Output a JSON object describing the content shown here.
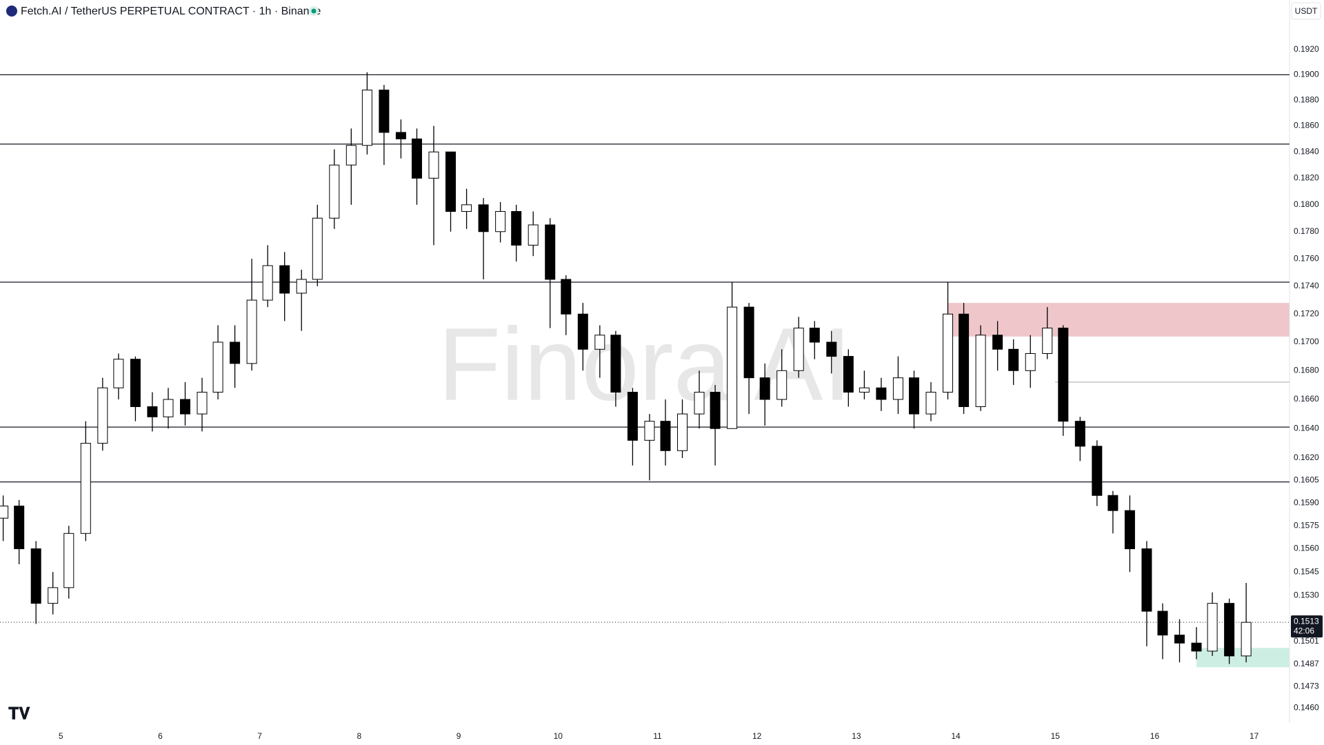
{
  "header": {
    "symbol": "Fetch.AI / TetherUS PERPETUAL CONTRACT · 1h · Binance",
    "currency": "USDT"
  },
  "chart_data": {
    "type": "candlestick",
    "watermark": "Finora AI",
    "log_scale": true,
    "up_color": "#ffffff",
    "down_color": "#000000",
    "wick_color": "#000000",
    "xlim": [
      4.388,
      17.356
    ],
    "xticks": [
      5,
      6,
      7,
      8,
      9,
      10,
      11,
      12,
      13,
      14,
      15,
      16,
      17
    ],
    "ylim": [
      0.1451,
      0.1941
    ],
    "yticks": [
      {
        "value": 0.192,
        "label": "0.1920"
      },
      {
        "value": 0.19,
        "label": "0.1900"
      },
      {
        "value": 0.188,
        "label": "0.1880"
      },
      {
        "value": 0.186,
        "label": "0.1860"
      },
      {
        "value": 0.184,
        "label": "0.1840"
      },
      {
        "value": 0.182,
        "label": "0.1820"
      },
      {
        "value": 0.18,
        "label": "0.1800"
      },
      {
        "value": 0.178,
        "label": "0.1780"
      },
      {
        "value": 0.176,
        "label": "0.1760"
      },
      {
        "value": 0.174,
        "label": "0.1740"
      },
      {
        "value": 0.172,
        "label": "0.1720"
      },
      {
        "value": 0.17,
        "label": "0.1700"
      },
      {
        "value": 0.168,
        "label": "0.1680"
      },
      {
        "value": 0.166,
        "label": "0.1660"
      },
      {
        "value": 0.164,
        "label": "0.1640"
      },
      {
        "value": 0.162,
        "label": "0.1620"
      },
      0.1605,
      {
        "value": 0.159,
        "label": "0.1590"
      },
      0.1575,
      {
        "value": 0.156,
        "label": "0.1560"
      },
      0.1545,
      {
        "value": 0.153,
        "label": "0.1530"
      },
      0.1501,
      0.1487,
      0.1473,
      {
        "value": 0.146,
        "label": "0.1460"
      }
    ],
    "x": [
      4.42,
      4.58,
      4.75,
      4.92,
      5.08,
      5.25,
      5.42,
      5.58,
      5.75,
      5.92,
      6.08,
      6.25,
      6.42,
      6.58,
      6.75,
      6.92,
      7.08,
      7.25,
      7.42,
      7.58,
      7.75,
      7.92,
      8.08,
      8.25,
      8.42,
      8.58,
      8.75,
      8.92,
      9.08,
      9.25,
      9.42,
      9.58,
      9.75,
      9.92,
      10.08,
      10.25,
      10.42,
      10.58,
      10.75,
      10.92,
      11.08,
      11.25,
      11.42,
      11.58,
      11.75,
      11.92,
      12.08,
      12.25,
      12.42,
      12.58,
      12.75,
      12.92,
      13.08,
      13.25,
      13.42,
      13.58,
      13.75,
      13.92,
      14.08,
      14.25,
      14.42,
      14.58,
      14.75,
      14.92,
      15.08,
      15.25,
      15.42,
      15.58,
      15.75,
      15.92,
      16.08,
      16.25,
      16.42,
      16.58,
      16.75,
      16.92
    ],
    "open": [
      0.158,
      0.1588,
      0.156,
      0.1525,
      0.1535,
      0.157,
      0.163,
      0.1668,
      0.1688,
      0.1655,
      0.1648,
      0.166,
      0.165,
      0.1665,
      0.17,
      0.1685,
      0.173,
      0.1755,
      0.1735,
      0.1745,
      0.179,
      0.183,
      0.1845,
      0.1888,
      0.1855,
      0.185,
      0.182,
      0.184,
      0.1795,
      0.18,
      0.178,
      0.1795,
      0.177,
      0.1785,
      0.1745,
      0.172,
      0.1695,
      0.1705,
      0.1665,
      0.1632,
      0.1645,
      0.1625,
      0.165,
      0.1665,
      0.164,
      0.1725,
      0.1675,
      0.166,
      0.168,
      0.171,
      0.17,
      0.169,
      0.1665,
      0.1668,
      0.166,
      0.1675,
      0.165,
      0.1665,
      0.172,
      0.1655,
      0.1705,
      0.1695,
      0.168,
      0.1692,
      0.171,
      0.1645,
      0.1628,
      0.1595,
      0.1585,
      0.156,
      0.152,
      0.1505,
      0.15,
      0.1495,
      0.1525,
      0.1492
    ],
    "high": [
      0.1595,
      0.1592,
      0.1565,
      0.1545,
      0.1575,
      0.1645,
      0.1675,
      0.1692,
      0.169,
      0.1665,
      0.1668,
      0.1672,
      0.1675,
      0.1712,
      0.1712,
      0.176,
      0.177,
      0.1765,
      0.1752,
      0.18,
      0.1842,
      0.1858,
      0.1902,
      0.1892,
      0.1865,
      0.1858,
      0.186,
      0.184,
      0.1812,
      0.1805,
      0.1802,
      0.18,
      0.1795,
      0.179,
      0.1748,
      0.1728,
      0.1712,
      0.1708,
      0.1668,
      0.165,
      0.166,
      0.166,
      0.168,
      0.167,
      0.1743,
      0.1728,
      0.1685,
      0.1695,
      0.1718,
      0.1715,
      0.1708,
      0.1695,
      0.168,
      0.1675,
      0.169,
      0.168,
      0.1672,
      0.1743,
      0.1728,
      0.1712,
      0.1715,
      0.1702,
      0.1705,
      0.1725,
      0.1712,
      0.1648,
      0.1632,
      0.1598,
      0.1595,
      0.1565,
      0.1525,
      0.1515,
      0.151,
      0.1532,
      0.1528,
      0.1538
    ],
    "low": [
      0.1565,
      0.155,
      0.1512,
      0.1518,
      0.1528,
      0.1565,
      0.1625,
      0.166,
      0.1645,
      0.1638,
      0.164,
      0.1642,
      0.1638,
      0.166,
      0.1668,
      0.168,
      0.1725,
      0.1715,
      0.1708,
      0.174,
      0.1782,
      0.18,
      0.1838,
      0.183,
      0.1835,
      0.18,
      0.177,
      0.178,
      0.1782,
      0.1745,
      0.1772,
      0.1758,
      0.1762,
      0.171,
      0.1705,
      0.168,
      0.1675,
      0.1655,
      0.1615,
      0.1605,
      0.1615,
      0.162,
      0.164,
      0.1615,
      0.164,
      0.165,
      0.1642,
      0.1655,
      0.1675,
      0.1688,
      0.1678,
      0.1655,
      0.166,
      0.1652,
      0.165,
      0.164,
      0.1645,
      0.166,
      0.165,
      0.1652,
      0.168,
      0.167,
      0.1668,
      0.1688,
      0.1635,
      0.1618,
      0.1588,
      0.157,
      0.1545,
      0.1498,
      0.149,
      0.1488,
      0.149,
      0.1492,
      0.1487,
      0.1488
    ],
    "close": [
      0.1588,
      0.156,
      0.1525,
      0.1535,
      0.157,
      0.163,
      0.1668,
      0.1688,
      0.1655,
      0.1648,
      0.166,
      0.165,
      0.1665,
      0.17,
      0.1685,
      0.173,
      0.1755,
      0.1735,
      0.1745,
      0.179,
      0.183,
      0.1845,
      0.1888,
      0.1855,
      0.185,
      0.182,
      0.184,
      0.1795,
      0.18,
      0.178,
      0.1795,
      0.177,
      0.1785,
      0.1745,
      0.172,
      0.1695,
      0.1705,
      0.1665,
      0.1632,
      0.1645,
      0.1625,
      0.165,
      0.1665,
      0.164,
      0.1725,
      0.1675,
      0.166,
      0.168,
      0.171,
      0.17,
      0.169,
      0.1665,
      0.1668,
      0.166,
      0.1675,
      0.165,
      0.1665,
      0.172,
      0.1655,
      0.1705,
      0.1695,
      0.168,
      0.1692,
      0.171,
      0.1645,
      0.1628,
      0.1595,
      0.1585,
      0.156,
      0.152,
      0.1505,
      0.15,
      0.1495,
      0.1525,
      0.1492,
      0.1513
    ],
    "levels": [
      0.19,
      0.1846,
      0.1743,
      0.1641,
      0.1604
    ],
    "ray": {
      "value": 0.1672,
      "x_start": 15.0,
      "color": "#b0b0b0"
    },
    "zones": [
      {
        "x_start": 13.92,
        "low": 0.1704,
        "high": 0.1728,
        "color": "#efc7ca"
      },
      {
        "x_start": 16.42,
        "low": 0.1485,
        "high": 0.1497,
        "color": "#cdeee3"
      }
    ],
    "last_price": 0.1513,
    "countdown": "42:06"
  }
}
